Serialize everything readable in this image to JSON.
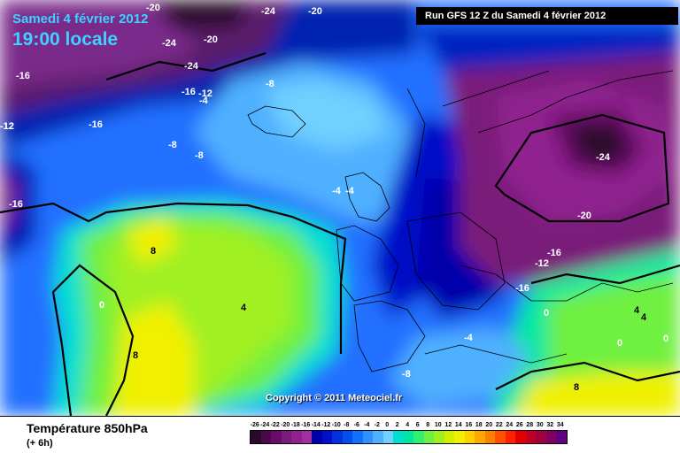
{
  "header": {
    "date": "Samedi 4 février 2012",
    "time": "19:00 locale",
    "run": "Run GFS 12 Z du Samedi 4 février 2012"
  },
  "copyright": "Copyright © 2011 Meteociel.fr",
  "footer": {
    "title": "Température 850hPa",
    "subtitle": "(+ 6h)"
  },
  "scale": {
    "labels": [
      "-26",
      "-24",
      "-22",
      "-20",
      "-18",
      "-16",
      "-14",
      "-12",
      "-10",
      "-8",
      "-6",
      "-4",
      "-2",
      "0",
      "2",
      "4",
      "6",
      "8",
      "10",
      "12",
      "14",
      "16",
      "18",
      "20",
      "22",
      "24",
      "26",
      "28",
      "30",
      "32",
      "34"
    ],
    "colors": [
      "#2a0a2a",
      "#4a0a4a",
      "#6a0a6a",
      "#7a1a7a",
      "#902090",
      "#a030a0",
      "#0000aa",
      "#0010c8",
      "#0030e0",
      "#0050f0",
      "#1070ff",
      "#3090ff",
      "#50b0ff",
      "#70d0ff",
      "#00e0d0",
      "#00e8a0",
      "#30f070",
      "#70f040",
      "#a0f020",
      "#d0f000",
      "#f0f000",
      "#ffd000",
      "#ffa800",
      "#ff8000",
      "#ff5000",
      "#ff2000",
      "#e00000",
      "#c00020",
      "#a00040",
      "#800060",
      "#600080"
    ]
  },
  "contour_labels": [
    "-20",
    "-24",
    "-20",
    "-24",
    "-20",
    "-24",
    "-16",
    "-16",
    "-12",
    "-16",
    "-4",
    "-12",
    "-8",
    "-12",
    "-16",
    "-8",
    "-8",
    "-4",
    "-4",
    "-24",
    "-20",
    "-16",
    "-12",
    "8",
    "-16",
    "0",
    "4",
    "0",
    "8",
    "-4",
    "-8",
    "4",
    "4",
    "0",
    "0",
    "8"
  ]
}
